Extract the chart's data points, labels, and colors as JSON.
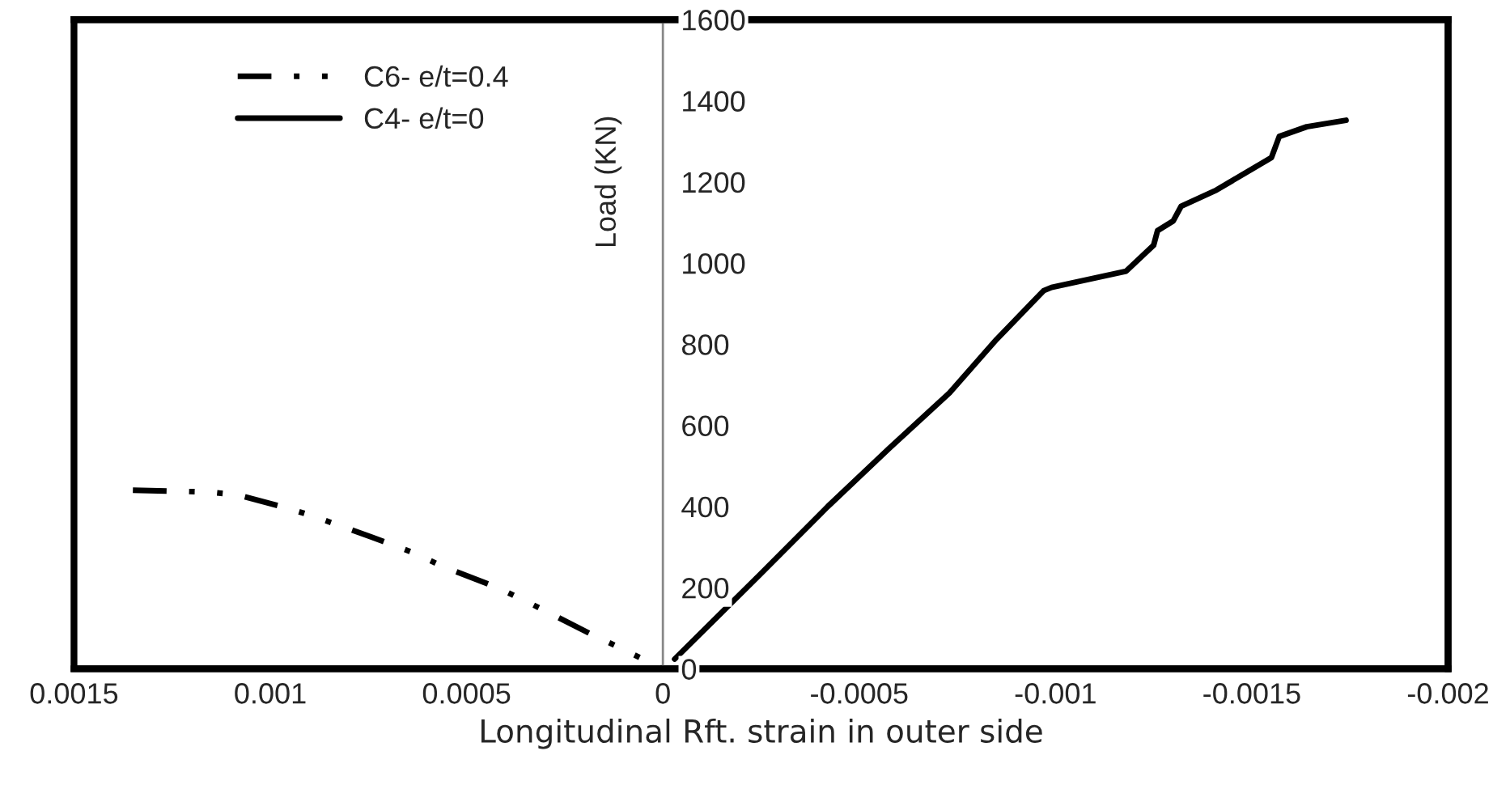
{
  "chart_data": {
    "type": "line",
    "xlabel": "Longitudinal Rft. strain in outer side",
    "ylabel": "Load (KN)",
    "xlim": [
      0.0015,
      -0.002
    ],
    "xticks": [
      0.0015,
      0.001,
      0.0005,
      0,
      -0.0005,
      -0.001,
      -0.0015,
      -0.002
    ],
    "ylim": [
      0,
      1600
    ],
    "yticks": [
      0,
      200,
      400,
      600,
      800,
      1000,
      1200,
      1400,
      1600
    ],
    "grid": false,
    "legend": "top left",
    "marker": "none",
    "series": [
      {
        "name": "C6- e/t=0.4",
        "color": "#000000",
        "line_style": "dashdotdot",
        "x": [
          0.00135,
          0.00116,
          0.00108,
          0.000956,
          0.00089,
          0.00074,
          0.00063,
          0.00056,
          0.00042,
          0.00031,
          0.00018,
          0.00011,
          0.0
        ],
        "values": [
          440,
          436,
          428,
          396,
          376,
          324,
          284,
          252,
          200,
          148,
          84,
          52,
          0
        ]
      },
      {
        "name": "C4- e/t=0",
        "color": "#000000",
        "line_style": "solid",
        "x": [
          -3e-05,
          -0.000247,
          -0.00042,
          -0.000577,
          -0.00073,
          -0.00085,
          -0.00097,
          -0.00099,
          -0.00118,
          -0.00125,
          -0.00126,
          -0.0013,
          -0.00132,
          -0.00141,
          -0.00148,
          -0.00155,
          -0.00157,
          -0.00164,
          -0.00174
        ],
        "values": [
          24,
          232,
          400,
          544,
          680,
          812,
          932,
          940,
          980,
          1044,
          1080,
          1104,
          1140,
          1180,
          1220,
          1260,
          1312,
          1336,
          1352
        ]
      }
    ]
  }
}
